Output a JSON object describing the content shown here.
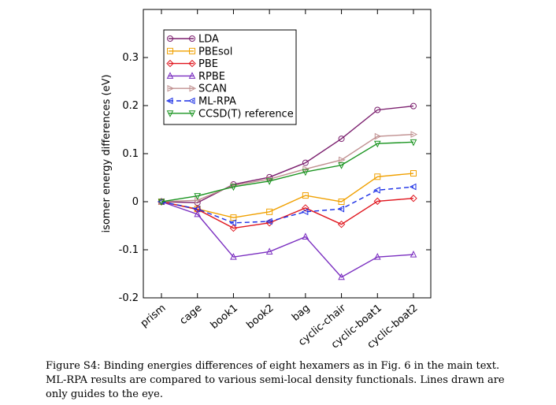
{
  "chart_data": {
    "type": "line",
    "categories": [
      "prism",
      "cage",
      "book1",
      "book2",
      "bag",
      "cyclic-chair",
      "cyclic-boat1",
      "cyclic-boat2"
    ],
    "ylabel": "isomer energy differences (eV)",
    "xlabel": "",
    "ylim": [
      -0.2,
      0.4
    ],
    "yticks": [
      -0.2,
      -0.1,
      0,
      0.1,
      0.2,
      0.3
    ],
    "ytick_labels": [
      "-0.2",
      "-0.1",
      "0",
      "0.1",
      "0.2",
      "0.3"
    ],
    "legend_position": "top-left",
    "grid": false,
    "series": [
      {
        "name": "LDA",
        "color": "#7b1f6e",
        "marker": "circle",
        "dash": "solid",
        "values": [
          0.0,
          -0.002,
          0.036,
          0.051,
          0.081,
          0.131,
          0.191,
          0.199
        ]
      },
      {
        "name": "PBEsol",
        "color": "#f0a000",
        "marker": "square",
        "dash": "solid",
        "values": [
          0.0,
          -0.015,
          -0.033,
          -0.021,
          0.013,
          0.0,
          0.052,
          0.059
        ]
      },
      {
        "name": "PBE",
        "color": "#e0161e",
        "marker": "diamond",
        "dash": "solid",
        "values": [
          0.0,
          -0.016,
          -0.055,
          -0.044,
          -0.013,
          -0.047,
          0.001,
          0.007
        ]
      },
      {
        "name": "RPBE",
        "color": "#7a2ec0",
        "marker": "triangle-up",
        "dash": "solid",
        "values": [
          0.0,
          -0.026,
          -0.115,
          -0.104,
          -0.073,
          -0.157,
          -0.115,
          -0.11
        ]
      },
      {
        "name": "SCAN",
        "color": "#c09090",
        "marker": "triangle-right",
        "dash": "solid",
        "values": [
          0.0,
          0.003,
          0.034,
          0.047,
          0.068,
          0.087,
          0.136,
          0.14
        ]
      },
      {
        "name": "ML-RPA",
        "color": "#1a2ee6",
        "marker": "triangle-left",
        "dash": "dashed",
        "values": [
          0.0,
          -0.015,
          -0.044,
          -0.041,
          -0.021,
          -0.015,
          0.024,
          0.031
        ]
      },
      {
        "name": "CCSD(T) reference",
        "color": "#1a9420",
        "marker": "triangle-down",
        "dash": "solid",
        "values": [
          0.0,
          0.012,
          0.031,
          0.043,
          0.062,
          0.076,
          0.121,
          0.124
        ]
      }
    ]
  },
  "caption": "Figure S4: Binding energies differences of eight hexamers as in Fig. 6 in the main text. ML-RPA results are compared to various semi-local density functionals. Lines drawn are only guides to the eye."
}
